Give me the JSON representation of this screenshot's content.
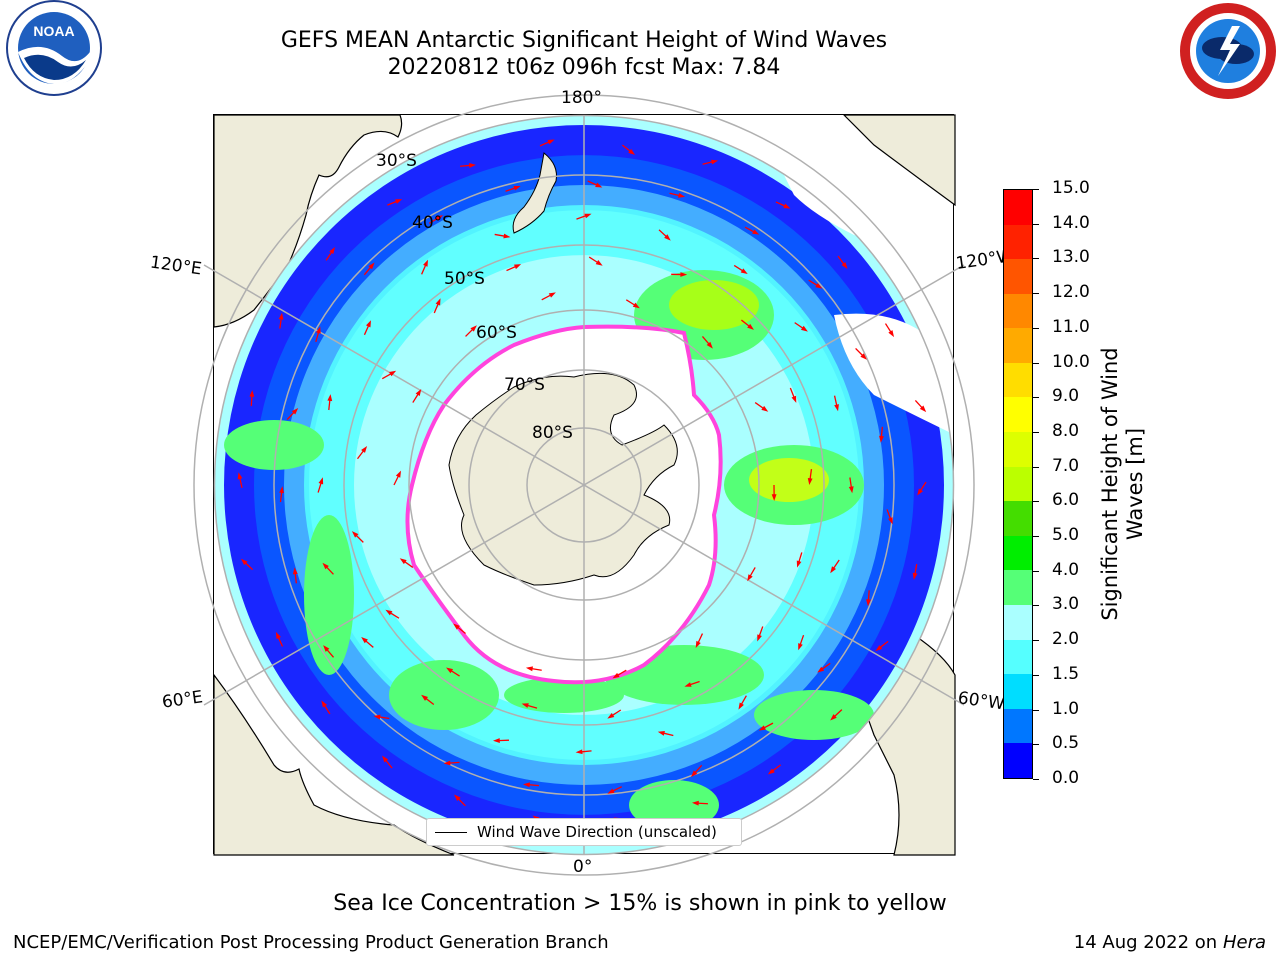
{
  "header": {
    "title_line1": "GEFS MEAN Antarctic Significant Height of Wind Waves",
    "title_line2": "20220812 t06z 096h fcst   Max: 7.84"
  },
  "logos": {
    "left": {
      "icon": "noaa-logo-icon",
      "text": "NOAA"
    },
    "right": {
      "icon": "nws-logo-icon",
      "text": "NATIONAL WEATHER SERVICE"
    }
  },
  "map": {
    "projection": "south-polar-stereographic",
    "lon_labels": {
      "top": "180°",
      "bottom": "0°",
      "left_upper": "120°E",
      "left_lower": "60°E",
      "right_upper": "120°W",
      "right_lower": "60°W"
    },
    "lat_labels": [
      "30°S",
      "40°S",
      "50°S",
      "60°S",
      "70°S",
      "80°S"
    ],
    "legend_label": "Wind Wave Direction (unscaled)",
    "colors": {
      "land": "#eeecda",
      "ice_edge": "#ff44dd",
      "arrow": "#ff0000",
      "grid": "#b0b0b0"
    }
  },
  "colorbar": {
    "label": "Significant Height of Wind Waves [m]",
    "ticks": [
      "0.0",
      "0.5",
      "1.0",
      "1.5",
      "2.0",
      "3.0",
      "4.0",
      "5.0",
      "6.0",
      "7.0",
      "8.0",
      "9.0",
      "10.0",
      "11.0",
      "12.0",
      "13.0",
      "14.0",
      "15.0"
    ],
    "colors": [
      "#0000ff",
      "#0077ff",
      "#00ddff",
      "#55ffff",
      "#aaffff",
      "#55ff77",
      "#00ee00",
      "#44dd00",
      "#bbff00",
      "#ddff00",
      "#ffff00",
      "#ffdd00",
      "#ffaa00",
      "#ff8800",
      "#ff5500",
      "#ff2200",
      "#ff0000"
    ]
  },
  "footer": {
    "note": "Sea Ice Concentration > 15% is shown in pink to yellow",
    "credit": "NCEP/EMC/Verification Post Processing Product Generation Branch",
    "date": "14 Aug 2022 on",
    "machine": "Hera"
  }
}
